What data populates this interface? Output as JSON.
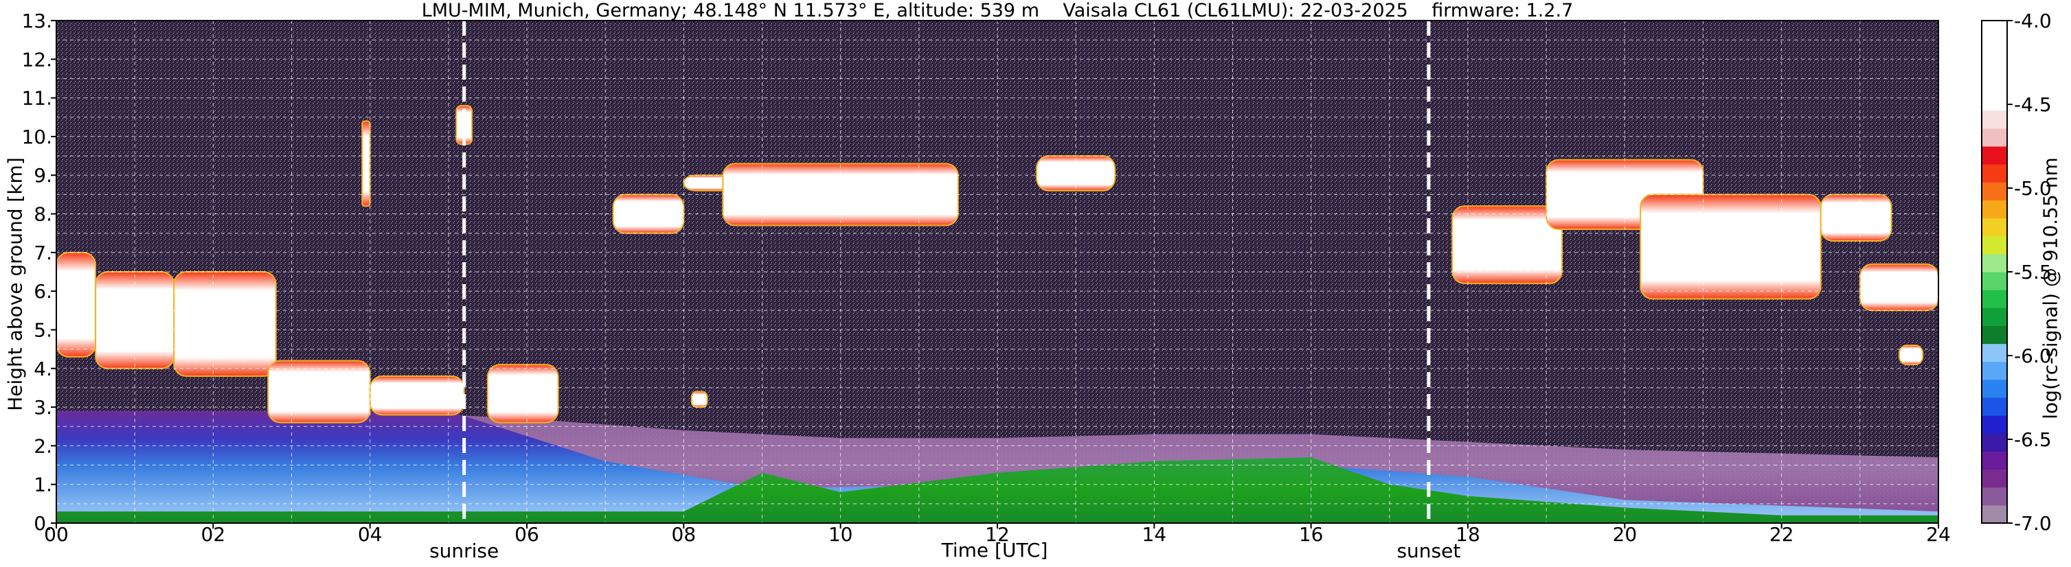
{
  "header": {
    "station": "LMU-MIM, Munich, Germany; 48.148° N 11.573° E, altitude: 539 m",
    "instrument": "Vaisala CL61 (CL61LMU): 22-03-2025",
    "firmware": "firmware: 1.2.7"
  },
  "colors": {
    "background_noise": "#2c2036",
    "boundary_layer": "#3a7ee0",
    "surface_green": "#1ea01e",
    "cloud_core": "#ffffff",
    "cloud_edge": "#ff2a10",
    "event_line": "#ffffff"
  },
  "chart_data": {
    "type": "heatmap",
    "title": "LMU-MIM, Munich, Germany; 48.148° N 11.573° E, altitude: 539 m    Vaisala CL61 (CL61LMU): 22-03-2025    firmware: 1.2.7",
    "xlabel": "Time [UTC]",
    "ylabel": "Height above ground [km]",
    "xlim": [
      0,
      24
    ],
    "ylim": [
      0,
      13
    ],
    "xticks": [
      "00",
      "02",
      "04",
      "06",
      "08",
      "10",
      "12",
      "14",
      "16",
      "18",
      "20",
      "22",
      "24"
    ],
    "yticks": [
      "0.",
      "1.",
      "2.",
      "3.",
      "4.",
      "5.",
      "6.",
      "7.",
      "8.",
      "9.",
      "10.",
      "11.",
      "12.",
      "13."
    ],
    "grid": true,
    "colorbar": {
      "label": "log(rc-signal) @ 910.55 nm",
      "range": [
        -7.0,
        -4.0
      ],
      "ticks": [
        "-4.0",
        "-4.5",
        "-5.0",
        "-5.5",
        "-6.0",
        "-6.5",
        "-7.0"
      ],
      "colors": [
        "#a08aa8",
        "#8a5a9a",
        "#7a2c8e",
        "#6a1c9c",
        "#3a1aa6",
        "#2020d0",
        "#1a55e8",
        "#2a82f0",
        "#5aa8f5",
        "#8cc6f7",
        "#0e7e2a",
        "#10a03a",
        "#22c048",
        "#58d66a",
        "#9ee88c",
        "#d4e830",
        "#f0d020",
        "#f7a818",
        "#f77018",
        "#f53a14",
        "#e8101a",
        "#f0c0c0",
        "#f7e0e0",
        "#ffffff",
        "#ffffff",
        "#ffffff",
        "#ffffff",
        "#ffffff"
      ]
    },
    "events": [
      {
        "name": "sunrise",
        "x": 5.2
      },
      {
        "name": "sunset",
        "x": 17.5
      }
    ],
    "boundary_layer_top_km": [
      {
        "x": 0,
        "y": 2.9
      },
      {
        "x": 4,
        "y": 2.9
      },
      {
        "x": 6,
        "y": 2.7
      },
      {
        "x": 8,
        "y": 2.4
      },
      {
        "x": 10,
        "y": 2.2
      },
      {
        "x": 12,
        "y": 2.2
      },
      {
        "x": 14,
        "y": 2.3
      },
      {
        "x": 16,
        "y": 2.3
      },
      {
        "x": 18,
        "y": 2.1
      },
      {
        "x": 20,
        "y": 1.9
      },
      {
        "x": 22,
        "y": 1.8
      },
      {
        "x": 24,
        "y": 1.7
      }
    ],
    "green_layer_top_km": [
      {
        "x": 0,
        "y": 0.3
      },
      {
        "x": 8,
        "y": 0.3
      },
      {
        "x": 9,
        "y": 1.3
      },
      {
        "x": 10,
        "y": 0.8
      },
      {
        "x": 12,
        "y": 1.3
      },
      {
        "x": 14,
        "y": 1.6
      },
      {
        "x": 16,
        "y": 1.7
      },
      {
        "x": 17,
        "y": 1.0
      },
      {
        "x": 18,
        "y": 0.7
      },
      {
        "x": 20,
        "y": 0.4
      },
      {
        "x": 22,
        "y": 0.2
      },
      {
        "x": 24,
        "y": 0.2
      }
    ],
    "cloud_regions": [
      {
        "t0": 0.0,
        "t1": 0.5,
        "base_km": 4.3,
        "top_km": 7.0
      },
      {
        "t0": 0.5,
        "t1": 1.5,
        "base_km": 4.0,
        "top_km": 6.5
      },
      {
        "t0": 1.5,
        "t1": 2.8,
        "base_km": 3.8,
        "top_km": 6.5
      },
      {
        "t0": 2.7,
        "t1": 4.0,
        "base_km": 2.6,
        "top_km": 4.2
      },
      {
        "t0": 4.0,
        "t1": 5.2,
        "base_km": 2.8,
        "top_km": 3.8
      },
      {
        "t0": 5.5,
        "t1": 6.4,
        "base_km": 2.6,
        "top_km": 4.1
      },
      {
        "t0": 3.9,
        "t1": 4.0,
        "base_km": 8.2,
        "top_km": 10.4
      },
      {
        "t0": 5.1,
        "t1": 5.3,
        "base_km": 9.8,
        "top_km": 10.8
      },
      {
        "t0": 8.1,
        "t1": 8.3,
        "base_km": 3.0,
        "top_km": 3.4
      },
      {
        "t0": 7.1,
        "t1": 8.0,
        "base_km": 7.5,
        "top_km": 8.5
      },
      {
        "t0": 8.0,
        "t1": 9.0,
        "base_km": 8.6,
        "top_km": 9.0
      },
      {
        "t0": 8.5,
        "t1": 11.5,
        "base_km": 7.7,
        "top_km": 9.3
      },
      {
        "t0": 12.5,
        "t1": 13.5,
        "base_km": 8.6,
        "top_km": 9.5
      },
      {
        "t0": 17.8,
        "t1": 19.2,
        "base_km": 6.2,
        "top_km": 8.2
      },
      {
        "t0": 19.0,
        "t1": 21.0,
        "base_km": 7.6,
        "top_km": 9.4
      },
      {
        "t0": 20.2,
        "t1": 22.5,
        "base_km": 5.8,
        "top_km": 8.5
      },
      {
        "t0": 22.5,
        "t1": 23.4,
        "base_km": 7.3,
        "top_km": 8.5
      },
      {
        "t0": 23.0,
        "t1": 24.0,
        "base_km": 5.5,
        "top_km": 6.7
      },
      {
        "t0": 23.5,
        "t1": 23.8,
        "base_km": 4.1,
        "top_km": 4.6
      }
    ]
  }
}
